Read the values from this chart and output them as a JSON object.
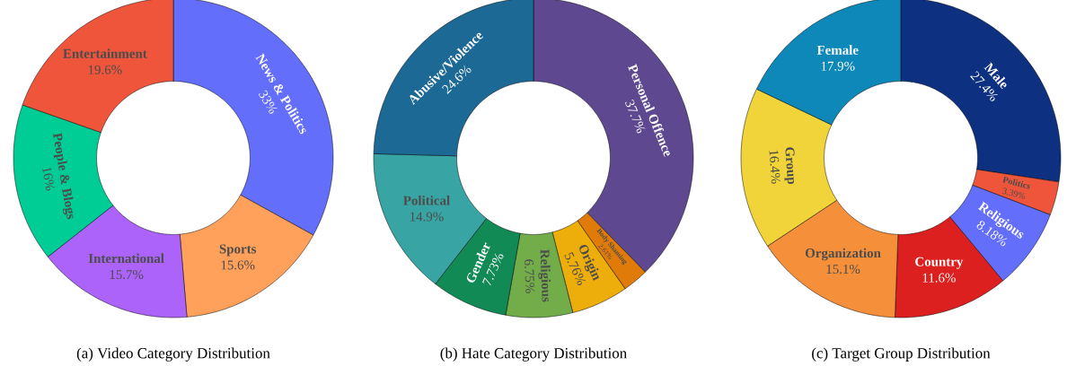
{
  "chart_data": [
    {
      "type": "donut",
      "title": "(a) Video Category Distribution",
      "categories": [
        "News & Politics",
        "Sports",
        "International",
        "People & Blogs",
        "Entertainment"
      ],
      "values": [
        33,
        15.6,
        15.7,
        16,
        19.6
      ],
      "value_labels": [
        "33%",
        "15.6%",
        "15.7%",
        "16%",
        "19.6%"
      ],
      "colors": [
        "#636efa",
        "#ffa15a",
        "#ab63fa",
        "#00cc96",
        "#ef553b"
      ]
    },
    {
      "type": "donut",
      "title": "(b) Hate Category Distribution",
      "categories": [
        "Personal Offence",
        "Body Shaming",
        "Origin",
        "Religious",
        "Gender",
        "Political",
        "Abusive/Violence"
      ],
      "values": [
        37.7,
        2.61,
        5.76,
        6.75,
        7.73,
        14.9,
        24.6
      ],
      "value_labels": [
        "37.7%",
        "2.61%",
        "5.76%",
        "6.75%",
        "7.73%",
        "14.9%",
        "24.6%"
      ],
      "colors": [
        "#5e4890",
        "#e07b0a",
        "#edad0b",
        "#72ad4a",
        "#118a55",
        "#38a5a4",
        "#1d6996"
      ]
    },
    {
      "type": "donut",
      "title": "(c) Target Group Distribution",
      "categories": [
        "Male",
        "Politics",
        "Religious",
        "Country",
        "Organization",
        "Group",
        "Female"
      ],
      "values": [
        27.4,
        3.39,
        8.18,
        11.6,
        15.1,
        16.4,
        17.9
      ],
      "value_labels": [
        "27.4%",
        "3.39%",
        "8.18%",
        "11.6%",
        "15.1%",
        "16.4%",
        "17.9%"
      ],
      "colors": [
        "#0d3080",
        "#ef553b",
        "#636efa",
        "#dc2020",
        "#f58f3a",
        "#f0d43a",
        "#0d88b8"
      ]
    }
  ]
}
